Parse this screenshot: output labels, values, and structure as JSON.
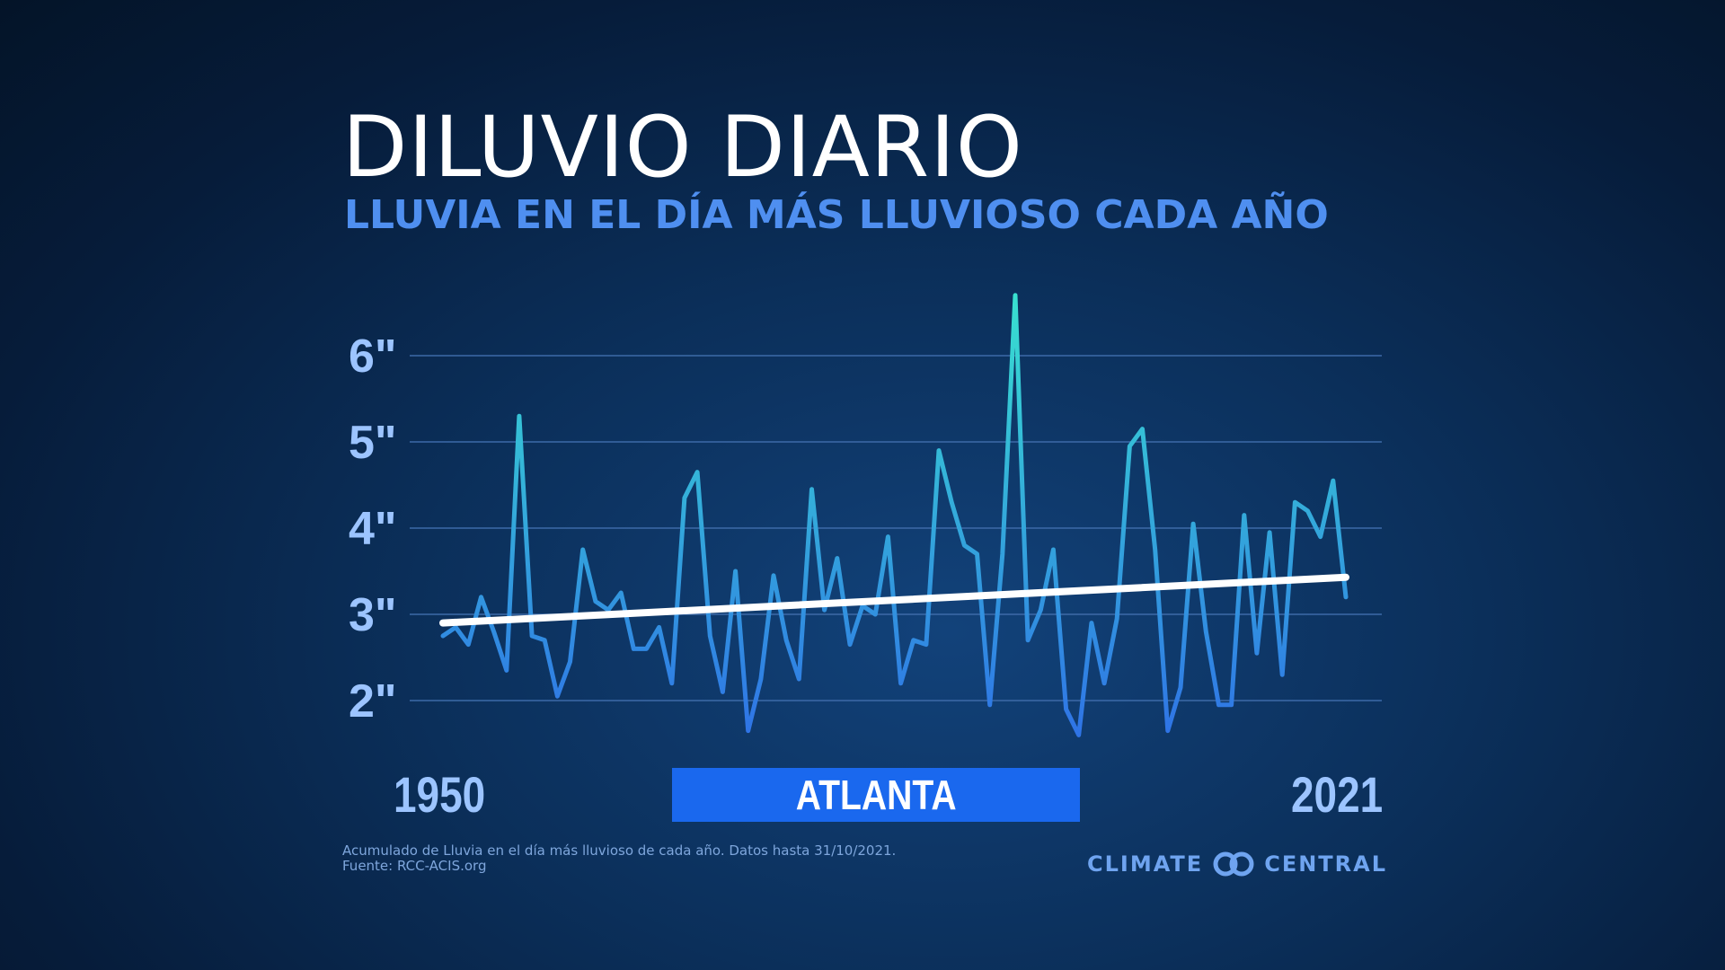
{
  "title": "DILUVIO DIARIO",
  "subtitle": "LLUVIA EN EL DÍA MÁS LLUVIOSO CADA AÑO",
  "city_label": "ATLANTA",
  "x_start_label": "1950",
  "x_end_label": "2021",
  "footnote_line1": "Acumulado de Lluvia en el día más lluvioso de cada año. Datos hasta 31/10/2021.",
  "footnote_line2": "Fuente: RCC-ACIS.org",
  "brand_left": "CLIMATE",
  "brand_right": "CENTRAL",
  "logo_icon": "linked-rings-icon",
  "colors": {
    "title": "#ffffff",
    "subtitle": "#4f8ff0",
    "axis_labels": "#9cc4ff",
    "series_bottom": "#2f73e6",
    "series_top": "#38e0d0",
    "trend": "#ffffff",
    "city_box": "#1a68ee",
    "gridline": "#3d6aa8"
  },
  "chart_data": {
    "type": "line",
    "title": "DILUVIO DIARIO",
    "subtitle": "LLUVIA EN EL DÍA MÁS LLUVIOSO CADA AÑO",
    "xlabel": "",
    "ylabel": "",
    "xlim": [
      1950,
      2021
    ],
    "ylim": [
      1.5,
      6.8
    ],
    "yticks": [
      2,
      3,
      4,
      5,
      6
    ],
    "ytick_labels": [
      "2\"",
      "3\"",
      "4\"",
      "5\"",
      "6\""
    ],
    "grid": true,
    "x": [
      1950,
      1951,
      1952,
      1953,
      1954,
      1955,
      1956,
      1957,
      1958,
      1959,
      1960,
      1961,
      1962,
      1963,
      1964,
      1965,
      1966,
      1967,
      1968,
      1969,
      1970,
      1971,
      1972,
      1973,
      1974,
      1975,
      1976,
      1977,
      1978,
      1979,
      1980,
      1981,
      1982,
      1983,
      1984,
      1985,
      1986,
      1987,
      1988,
      1989,
      1990,
      1991,
      1992,
      1993,
      1994,
      1995,
      1996,
      1997,
      1998,
      1999,
      2000,
      2001,
      2002,
      2003,
      2004,
      2005,
      2006,
      2007,
      2008,
      2009,
      2010,
      2011,
      2012,
      2013,
      2014,
      2015,
      2016,
      2017,
      2018,
      2019,
      2020,
      2021
    ],
    "series": [
      {
        "values": [
          2.75,
          2.85,
          2.65,
          3.2,
          2.8,
          2.35,
          5.3,
          2.75,
          2.7,
          2.05,
          2.45,
          3.75,
          3.15,
          3.05,
          3.25,
          2.6,
          2.6,
          2.85,
          2.2,
          4.35,
          4.65,
          2.75,
          2.1,
          3.5,
          1.65,
          2.25,
          3.45,
          2.7,
          2.25,
          4.45,
          3.05,
          3.65,
          2.65,
          3.1,
          3.0,
          3.9,
          2.2,
          2.7,
          2.65,
          4.9,
          4.3,
          3.8,
          3.7,
          1.95,
          3.7,
          6.7,
          2.7,
          3.05,
          3.75,
          1.9,
          1.6,
          2.9,
          2.2,
          2.95,
          4.95,
          5.15,
          3.75,
          1.65,
          2.15,
          4.05,
          2.8,
          1.95,
          1.95,
          4.15,
          2.55,
          3.95,
          2.3,
          4.3,
          4.2,
          3.9,
          4.55,
          3.2
        ]
      }
    ],
    "trend": {
      "x": [
        1950,
        2021
      ],
      "y": [
        2.9,
        3.43
      ]
    }
  }
}
